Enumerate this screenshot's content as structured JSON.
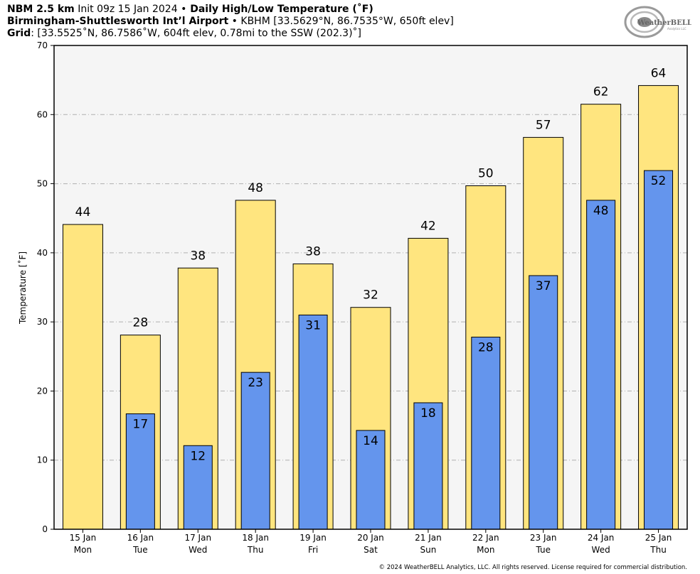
{
  "header": {
    "line1_bold": "NBM 2.5 km",
    "line1_rest": " Init 09z 15 Jan 2024 ",
    "line1_sep": "•",
    "line1_title": " Daily High/Low Temperature (˚F)",
    "line2_bold": "Birmingham-Shuttlesworth Int’l Airport",
    "line2_sep": " • ",
    "line2_rest": "KBHM [33.5629°N, 86.7535°W, 650ft elev]",
    "line3_bold": "Grid",
    "line3_rest": ": [33.5525˚N, 86.7586˚W, 604ft elev, 0.78mi to the SSW (202.3)˚]"
  },
  "logo": {
    "text": "WeatherBELL",
    "subtext": "Analytics LLC"
  },
  "credit": "© 2024 WeatherBELL Analytics, LLC. All rights reserved. License required for commercial distribution.",
  "chart_data": {
    "type": "bar",
    "title": "Daily High/Low Temperature (˚F)",
    "ylabel": "Temperature [˚F]",
    "xlabel": "",
    "ylim": [
      0,
      70
    ],
    "yticks": [
      0,
      10,
      20,
      30,
      40,
      50,
      60,
      70
    ],
    "grid": true,
    "categories": [
      {
        "date": "15 Jan",
        "day": "Mon"
      },
      {
        "date": "16 Jan",
        "day": "Tue"
      },
      {
        "date": "17 Jan",
        "day": "Wed"
      },
      {
        "date": "18 Jan",
        "day": "Thu"
      },
      {
        "date": "19 Jan",
        "day": "Fri"
      },
      {
        "date": "20 Jan",
        "day": "Sat"
      },
      {
        "date": "21 Jan",
        "day": "Sun"
      },
      {
        "date": "22 Jan",
        "day": "Mon"
      },
      {
        "date": "23 Jan",
        "day": "Tue"
      },
      {
        "date": "24 Jan",
        "day": "Wed"
      },
      {
        "date": "25 Jan",
        "day": "Thu"
      }
    ],
    "series": [
      {
        "values": [
          44.1,
          28.1,
          37.8,
          47.6,
          38.4,
          32.1,
          42.1,
          49.7,
          56.7,
          61.5,
          64.2
        ],
        "labels": [
          "44",
          "28",
          "38",
          "48",
          "38",
          "32",
          "42",
          "50",
          "57",
          "62",
          "64"
        ],
        "color": "#ffe57f"
      },
      {
        "values": [
          null,
          16.7,
          12.1,
          22.7,
          31.0,
          14.3,
          18.3,
          27.8,
          36.7,
          47.6,
          51.9
        ],
        "labels": [
          null,
          "17",
          "12",
          "23",
          "31",
          "14",
          "18",
          "28",
          "37",
          "48",
          "52"
        ],
        "color": "#6495ed"
      }
    ]
  }
}
